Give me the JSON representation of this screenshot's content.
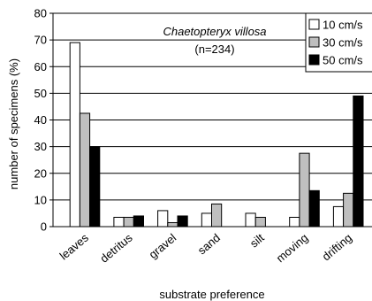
{
  "chart_data": {
    "type": "bar",
    "categories": [
      "leaves",
      "detritus",
      "gravel",
      "sand",
      "silt",
      "moving",
      "drifting"
    ],
    "series": [
      {
        "name": "10 cm/s",
        "color": "#ffffff",
        "values": [
          69,
          3.5,
          6,
          5,
          5,
          3.5,
          7.5
        ]
      },
      {
        "name": "30 cm/s",
        "color": "#bfbfbf",
        "values": [
          42.5,
          3.5,
          1.5,
          8.5,
          3.5,
          27.5,
          12.5
        ]
      },
      {
        "name": "50 cm/s",
        "color": "#000000",
        "values": [
          30,
          4,
          4,
          0,
          0,
          13.5,
          49
        ]
      }
    ],
    "title": "",
    "annotation": {
      "species": "Chaetopteryx villosa",
      "sample_size": "(n=234)"
    },
    "xlabel": "substrate preference",
    "ylabel": "number of specimens (%)",
    "ylim": [
      0,
      80
    ],
    "yticks": [
      0,
      10,
      20,
      30,
      40,
      50,
      60,
      70,
      80
    ],
    "grid": "horizontal",
    "legend_position": "top-right"
  }
}
